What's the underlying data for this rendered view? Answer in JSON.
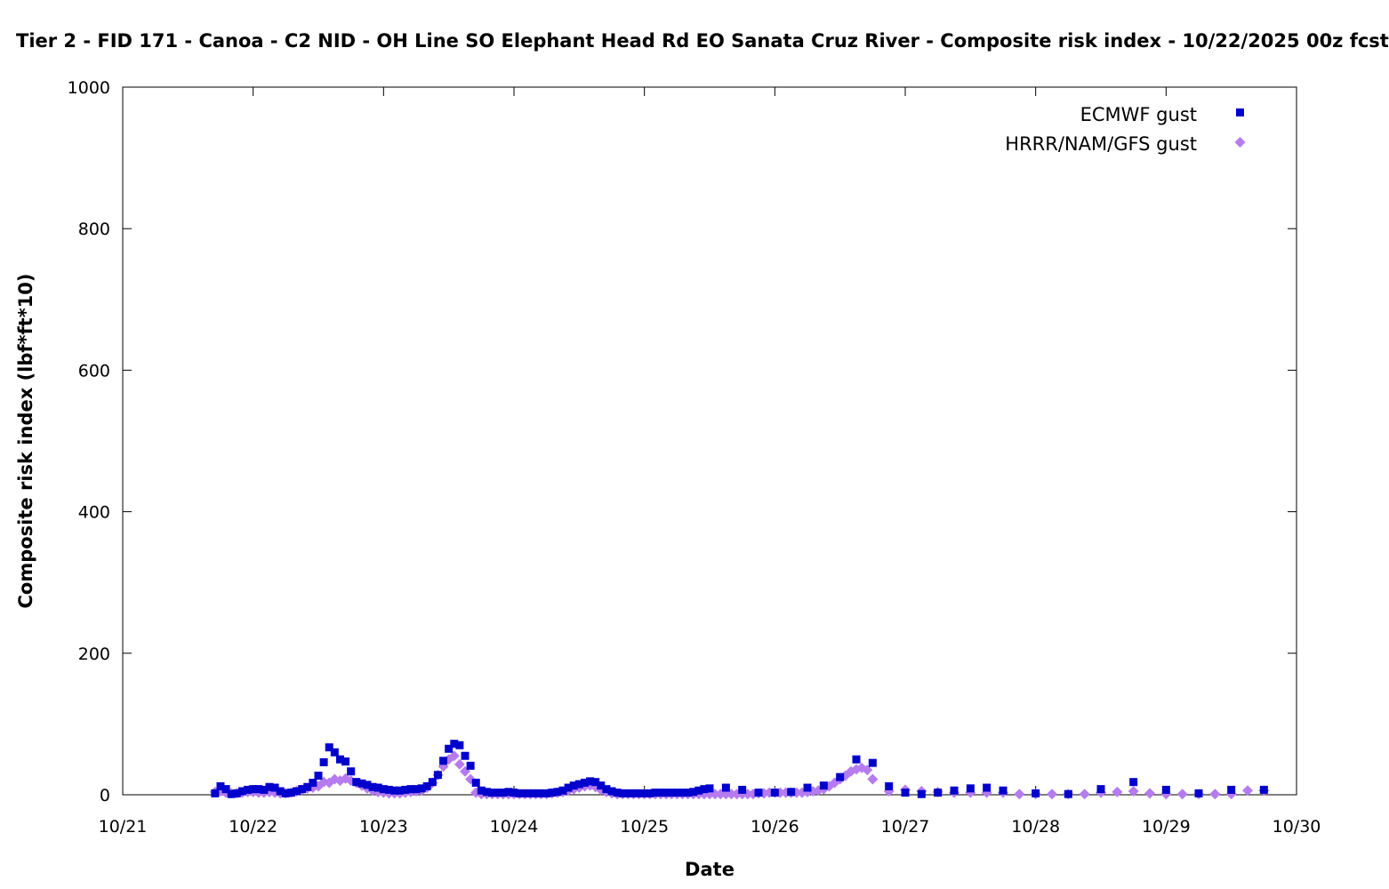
{
  "chart_data": {
    "type": "scatter",
    "title": "Tier 2 - FID 171 - Canoa - C2 NID - OH Line SO Elephant Head Rd EO Sanata Cruz River - Composite risk index - 10/22/2025 00z fcst",
    "xlabel": "Date",
    "ylabel": "Composite risk index (lbf*ft*10)",
    "xlim": [
      "2025-10-21",
      "2025-10-30"
    ],
    "ylim": [
      0,
      1000
    ],
    "x_tick_labels": [
      "10/21",
      "10/22",
      "10/23",
      "10/24",
      "10/25",
      "10/26",
      "10/27",
      "10/28",
      "10/29",
      "10/30"
    ],
    "y_tick_labels": [
      "0",
      "200",
      "400",
      "600",
      "800",
      "1000"
    ],
    "grid": false,
    "legend_position": "top-right",
    "series": [
      {
        "name": "ECMWF gust",
        "marker": "square",
        "color": "#0000cd",
        "points": [
          [
            "2025-10-21 17:00",
            2
          ],
          [
            "2025-10-21 18:00",
            12
          ],
          [
            "2025-10-21 19:00",
            8
          ],
          [
            "2025-10-21 20:00",
            1
          ],
          [
            "2025-10-21 21:00",
            2
          ],
          [
            "2025-10-21 22:00",
            5
          ],
          [
            "2025-10-21 23:00",
            7
          ],
          [
            "2025-10-22 00:00",
            8
          ],
          [
            "2025-10-22 01:00",
            8
          ],
          [
            "2025-10-22 02:00",
            7
          ],
          [
            "2025-10-22 03:00",
            11
          ],
          [
            "2025-10-22 04:00",
            10
          ],
          [
            "2025-10-22 05:00",
            5
          ],
          [
            "2025-10-22 06:00",
            2
          ],
          [
            "2025-10-22 07:00",
            3
          ],
          [
            "2025-10-22 08:00",
            5
          ],
          [
            "2025-10-22 09:00",
            8
          ],
          [
            "2025-10-22 10:00",
            11
          ],
          [
            "2025-10-22 11:00",
            17
          ],
          [
            "2025-10-22 12:00",
            27
          ],
          [
            "2025-10-22 13:00",
            46
          ],
          [
            "2025-10-22 14:00",
            67
          ],
          [
            "2025-10-22 15:00",
            60
          ],
          [
            "2025-10-22 16:00",
            50
          ],
          [
            "2025-10-22 17:00",
            47
          ],
          [
            "2025-10-22 18:00",
            33
          ],
          [
            "2025-10-22 19:00",
            18
          ],
          [
            "2025-10-22 20:00",
            16
          ],
          [
            "2025-10-22 21:00",
            14
          ],
          [
            "2025-10-22 22:00",
            11
          ],
          [
            "2025-10-22 23:00",
            10
          ],
          [
            "2025-10-23 00:00",
            8
          ],
          [
            "2025-10-23 01:00",
            7
          ],
          [
            "2025-10-23 02:00",
            6
          ],
          [
            "2025-10-23 03:00",
            6
          ],
          [
            "2025-10-23 04:00",
            7
          ],
          [
            "2025-10-23 05:00",
            8
          ],
          [
            "2025-10-23 06:00",
            8
          ],
          [
            "2025-10-23 07:00",
            9
          ],
          [
            "2025-10-23 08:00",
            12
          ],
          [
            "2025-10-23 09:00",
            18
          ],
          [
            "2025-10-23 10:00",
            28
          ],
          [
            "2025-10-23 11:00",
            48
          ],
          [
            "2025-10-23 12:00",
            65
          ],
          [
            "2025-10-23 13:00",
            72
          ],
          [
            "2025-10-23 14:00",
            70
          ],
          [
            "2025-10-23 15:00",
            55
          ],
          [
            "2025-10-23 16:00",
            41
          ],
          [
            "2025-10-23 17:00",
            17
          ],
          [
            "2025-10-23 18:00",
            6
          ],
          [
            "2025-10-23 19:00",
            4
          ],
          [
            "2025-10-23 20:00",
            3
          ],
          [
            "2025-10-23 21:00",
            3
          ],
          [
            "2025-10-23 22:00",
            3
          ],
          [
            "2025-10-23 23:00",
            4
          ],
          [
            "2025-10-24 00:00",
            3
          ],
          [
            "2025-10-24 01:00",
            2
          ],
          [
            "2025-10-24 02:00",
            2
          ],
          [
            "2025-10-24 03:00",
            2
          ],
          [
            "2025-10-24 04:00",
            2
          ],
          [
            "2025-10-24 05:00",
            2
          ],
          [
            "2025-10-24 06:00",
            2
          ],
          [
            "2025-10-24 07:00",
            3
          ],
          [
            "2025-10-24 08:00",
            4
          ],
          [
            "2025-10-24 09:00",
            6
          ],
          [
            "2025-10-24 10:00",
            10
          ],
          [
            "2025-10-24 11:00",
            13
          ],
          [
            "2025-10-24 12:00",
            15
          ],
          [
            "2025-10-24 13:00",
            17
          ],
          [
            "2025-10-24 14:00",
            19
          ],
          [
            "2025-10-24 15:00",
            18
          ],
          [
            "2025-10-24 16:00",
            13
          ],
          [
            "2025-10-24 17:00",
            8
          ],
          [
            "2025-10-24 18:00",
            5
          ],
          [
            "2025-10-24 19:00",
            3
          ],
          [
            "2025-10-24 20:00",
            2
          ],
          [
            "2025-10-24 21:00",
            2
          ],
          [
            "2025-10-24 22:00",
            2
          ],
          [
            "2025-10-24 23:00",
            2
          ],
          [
            "2025-10-25 00:00",
            2
          ],
          [
            "2025-10-25 01:00",
            2
          ],
          [
            "2025-10-25 02:00",
            3
          ],
          [
            "2025-10-25 03:00",
            3
          ],
          [
            "2025-10-25 04:00",
            3
          ],
          [
            "2025-10-25 05:00",
            3
          ],
          [
            "2025-10-25 06:00",
            3
          ],
          [
            "2025-10-25 07:00",
            3
          ],
          [
            "2025-10-25 08:00",
            3
          ],
          [
            "2025-10-25 09:00",
            4
          ],
          [
            "2025-10-25 10:00",
            6
          ],
          [
            "2025-10-25 11:00",
            8
          ],
          [
            "2025-10-25 12:00",
            9
          ],
          [
            "2025-10-25 15:00",
            10
          ],
          [
            "2025-10-25 18:00",
            7
          ],
          [
            "2025-10-25 21:00",
            3
          ],
          [
            "2025-10-26 00:00",
            3
          ],
          [
            "2025-10-26 03:00",
            4
          ],
          [
            "2025-10-26 06:00",
            10
          ],
          [
            "2025-10-26 09:00",
            13
          ],
          [
            "2025-10-26 12:00",
            25
          ],
          [
            "2025-10-26 15:00",
            50
          ],
          [
            "2025-10-26 18:00",
            45
          ],
          [
            "2025-10-26 21:00",
            12
          ],
          [
            "2025-10-27 00:00",
            3
          ],
          [
            "2025-10-27 03:00",
            1
          ],
          [
            "2025-10-27 06:00",
            3
          ],
          [
            "2025-10-27 09:00",
            6
          ],
          [
            "2025-10-27 12:00",
            9
          ],
          [
            "2025-10-27 15:00",
            10
          ],
          [
            "2025-10-27 18:00",
            6
          ],
          [
            "2025-10-28 00:00",
            2
          ],
          [
            "2025-10-28 06:00",
            1
          ],
          [
            "2025-10-28 12:00",
            8
          ],
          [
            "2025-10-28 18:00",
            18
          ],
          [
            "2025-10-29 00:00",
            7
          ],
          [
            "2025-10-29 06:00",
            2
          ],
          [
            "2025-10-29 12:00",
            7
          ],
          [
            "2025-10-29 18:00",
            7
          ]
        ]
      },
      {
        "name": "HRRR/NAM/GFS gust",
        "marker": "diamond",
        "color": "#b57bef",
        "points": [
          [
            "2025-10-21 17:00",
            4
          ],
          [
            "2025-10-21 18:00",
            5
          ],
          [
            "2025-10-21 19:00",
            3
          ],
          [
            "2025-10-21 20:00",
            2
          ],
          [
            "2025-10-21 21:00",
            2
          ],
          [
            "2025-10-21 22:00",
            3
          ],
          [
            "2025-10-21 23:00",
            4
          ],
          [
            "2025-10-22 00:00",
            4
          ],
          [
            "2025-10-22 01:00",
            3
          ],
          [
            "2025-10-22 02:00",
            3
          ],
          [
            "2025-10-22 03:00",
            4
          ],
          [
            "2025-10-22 04:00",
            3
          ],
          [
            "2025-10-22 05:00",
            2
          ],
          [
            "2025-10-22 06:00",
            2
          ],
          [
            "2025-10-22 07:00",
            3
          ],
          [
            "2025-10-22 08:00",
            5
          ],
          [
            "2025-10-22 09:00",
            7
          ],
          [
            "2025-10-22 10:00",
            9
          ],
          [
            "2025-10-22 11:00",
            10
          ],
          [
            "2025-10-22 12:00",
            12
          ],
          [
            "2025-10-22 13:00",
            18
          ],
          [
            "2025-10-22 14:00",
            17
          ],
          [
            "2025-10-22 15:00",
            22
          ],
          [
            "2025-10-22 16:00",
            20
          ],
          [
            "2025-10-22 17:00",
            23
          ],
          [
            "2025-10-22 18:00",
            20
          ],
          [
            "2025-10-22 19:00",
            17
          ],
          [
            "2025-10-22 20:00",
            13
          ],
          [
            "2025-10-22 21:00",
            9
          ],
          [
            "2025-10-22 22:00",
            6
          ],
          [
            "2025-10-22 23:00",
            4
          ],
          [
            "2025-10-23 00:00",
            3
          ],
          [
            "2025-10-23 01:00",
            2
          ],
          [
            "2025-10-23 02:00",
            2
          ],
          [
            "2025-10-23 03:00",
            2
          ],
          [
            "2025-10-23 04:00",
            3
          ],
          [
            "2025-10-23 05:00",
            4
          ],
          [
            "2025-10-23 06:00",
            5
          ],
          [
            "2025-10-23 07:00",
            6
          ],
          [
            "2025-10-23 08:00",
            10
          ],
          [
            "2025-10-23 09:00",
            17
          ],
          [
            "2025-10-23 10:00",
            28
          ],
          [
            "2025-10-23 11:00",
            40
          ],
          [
            "2025-10-23 12:00",
            50
          ],
          [
            "2025-10-23 13:00",
            55
          ],
          [
            "2025-10-23 14:00",
            43
          ],
          [
            "2025-10-23 15:00",
            33
          ],
          [
            "2025-10-23 16:00",
            22
          ],
          [
            "2025-10-23 17:00",
            3
          ],
          [
            "2025-10-23 18:00",
            1
          ],
          [
            "2025-10-23 19:00",
            1
          ],
          [
            "2025-10-23 20:00",
            1
          ],
          [
            "2025-10-23 21:00",
            1
          ],
          [
            "2025-10-23 22:00",
            1
          ],
          [
            "2025-10-23 23:00",
            1
          ],
          [
            "2025-10-24 00:00",
            1
          ],
          [
            "2025-10-24 01:00",
            1
          ],
          [
            "2025-10-24 02:00",
            1
          ],
          [
            "2025-10-24 03:00",
            1
          ],
          [
            "2025-10-24 04:00",
            1
          ],
          [
            "2025-10-24 05:00",
            1
          ],
          [
            "2025-10-24 06:00",
            1
          ],
          [
            "2025-10-24 07:00",
            2
          ],
          [
            "2025-10-24 08:00",
            3
          ],
          [
            "2025-10-24 09:00",
            4
          ],
          [
            "2025-10-24 10:00",
            6
          ],
          [
            "2025-10-24 11:00",
            8
          ],
          [
            "2025-10-24 12:00",
            10
          ],
          [
            "2025-10-24 13:00",
            12
          ],
          [
            "2025-10-24 14:00",
            13
          ],
          [
            "2025-10-24 15:00",
            11
          ],
          [
            "2025-10-24 16:00",
            7
          ],
          [
            "2025-10-24 17:00",
            4
          ],
          [
            "2025-10-24 18:00",
            2
          ],
          [
            "2025-10-24 19:00",
            1
          ],
          [
            "2025-10-24 20:00",
            1
          ],
          [
            "2025-10-24 21:00",
            1
          ],
          [
            "2025-10-24 22:00",
            1
          ],
          [
            "2025-10-24 23:00",
            1
          ],
          [
            "2025-10-25 00:00",
            1
          ],
          [
            "2025-10-25 01:00",
            1
          ],
          [
            "2025-10-25 02:00",
            1
          ],
          [
            "2025-10-25 03:00",
            1
          ],
          [
            "2025-10-25 04:00",
            1
          ],
          [
            "2025-10-25 05:00",
            1
          ],
          [
            "2025-10-25 06:00",
            1
          ],
          [
            "2025-10-25 07:00",
            1
          ],
          [
            "2025-10-25 08:00",
            1
          ],
          [
            "2025-10-25 09:00",
            1
          ],
          [
            "2025-10-25 10:00",
            1
          ],
          [
            "2025-10-25 11:00",
            1
          ],
          [
            "2025-10-25 12:00",
            1
          ],
          [
            "2025-10-25 13:00",
            1
          ],
          [
            "2025-10-25 14:00",
            1
          ],
          [
            "2025-10-25 15:00",
            1
          ],
          [
            "2025-10-25 16:00",
            1
          ],
          [
            "2025-10-25 17:00",
            1
          ],
          [
            "2025-10-25 18:00",
            1
          ],
          [
            "2025-10-25 19:00",
            1
          ],
          [
            "2025-10-25 20:00",
            1
          ],
          [
            "2025-10-25 21:00",
            2
          ],
          [
            "2025-10-25 22:00",
            2
          ],
          [
            "2025-10-25 23:00",
            3
          ],
          [
            "2025-10-26 00:00",
            3
          ],
          [
            "2025-10-26 01:00",
            3
          ],
          [
            "2025-10-26 02:00",
            3
          ],
          [
            "2025-10-26 03:00",
            3
          ],
          [
            "2025-10-26 04:00",
            3
          ],
          [
            "2025-10-26 05:00",
            3
          ],
          [
            "2025-10-26 06:00",
            4
          ],
          [
            "2025-10-26 07:00",
            5
          ],
          [
            "2025-10-26 08:00",
            6
          ],
          [
            "2025-10-26 09:00",
            8
          ],
          [
            "2025-10-26 10:00",
            12
          ],
          [
            "2025-10-26 11:00",
            17
          ],
          [
            "2025-10-26 12:00",
            22
          ],
          [
            "2025-10-26 13:00",
            27
          ],
          [
            "2025-10-26 14:00",
            33
          ],
          [
            "2025-10-26 15:00",
            36
          ],
          [
            "2025-10-26 16:00",
            38
          ],
          [
            "2025-10-26 17:00",
            35
          ],
          [
            "2025-10-26 18:00",
            22
          ],
          [
            "2025-10-26 21:00",
            5
          ],
          [
            "2025-10-27 00:00",
            7
          ],
          [
            "2025-10-27 03:00",
            5
          ],
          [
            "2025-10-27 06:00",
            4
          ],
          [
            "2025-10-27 09:00",
            3
          ],
          [
            "2025-10-27 12:00",
            3
          ],
          [
            "2025-10-27 15:00",
            3
          ],
          [
            "2025-10-27 18:00",
            3
          ],
          [
            "2025-10-27 21:00",
            1
          ],
          [
            "2025-10-28 00:00",
            1
          ],
          [
            "2025-10-28 03:00",
            1
          ],
          [
            "2025-10-28 06:00",
            1
          ],
          [
            "2025-10-28 09:00",
            1
          ],
          [
            "2025-10-28 12:00",
            3
          ],
          [
            "2025-10-28 15:00",
            4
          ],
          [
            "2025-10-28 18:00",
            5
          ],
          [
            "2025-10-28 21:00",
            2
          ],
          [
            "2025-10-29 00:00",
            1
          ],
          [
            "2025-10-29 03:00",
            1
          ],
          [
            "2025-10-29 06:00",
            1
          ],
          [
            "2025-10-29 09:00",
            1
          ],
          [
            "2025-10-29 12:00",
            1
          ],
          [
            "2025-10-29 15:00",
            6
          ],
          [
            "2025-10-29 18:00",
            6
          ]
        ]
      }
    ]
  }
}
